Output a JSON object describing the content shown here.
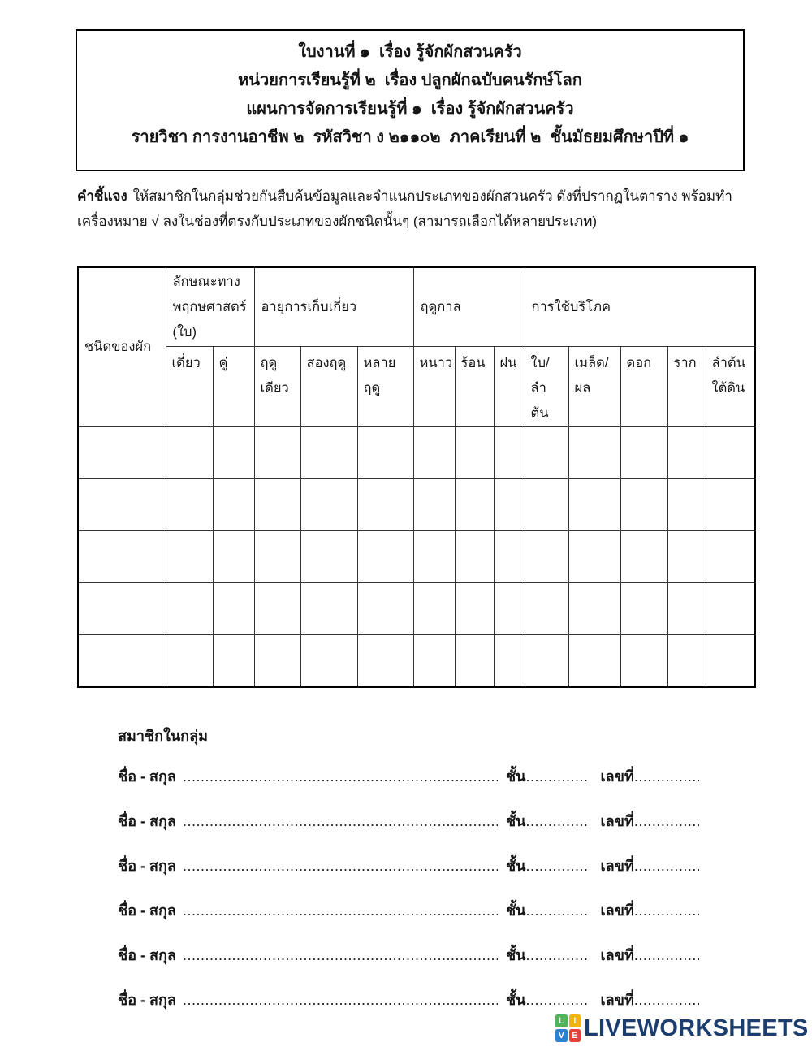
{
  "page": {
    "background": "#ffffff"
  },
  "header_box": {
    "lines": [
      "ใบงานที่ ๑  เรื่อง รู้จักผักสวนครัว",
      "หน่วยการเรียนรู้ที่ ๒  เรื่อง ปลูกผักฉบับคนรักษ์โลก",
      "แผนการจัดการเรียนรู้ที่ ๑  เรื่อง รู้จักผักสวนครัว",
      "รายวิชา การงานอาชีพ ๒  รหัสวิชา ง ๒๑๑๐๒  ภาคเรียนที่ ๒  ชั้นมัธยมศึกษาปีที่ ๑"
    ]
  },
  "instructions": {
    "label": "คำชี้แจง",
    "text": "ให้สมาชิกในกลุ่มช่วยกันสืบค้นข้อมูลและจำแนกประเภทของผักสวนครัว ดังที่ปรากฏในตาราง พร้อมทำ\nเครื่องหมาย √ ลงในช่องที่ตรงกับประเภทของผักชนิดนั้นๆ (สามารถเลือกได้หลายประเภท)"
  },
  "table": {
    "row_header": "ชนิดของผัก",
    "groups": [
      {
        "label": "ลักษณะทาง\nพฤกษศาสตร์\n(ใบ)",
        "subs": [
          "เดี่ยว",
          "คู่"
        ]
      },
      {
        "label": "อายุการเก็บเกี่ยว",
        "subs": [
          "ฤดู\nเดียว",
          "สองฤดู",
          "หลาย\nฤดู"
        ]
      },
      {
        "label": "ฤดูกาล",
        "subs": [
          "หนาว",
          "ร้อน",
          "ฝน"
        ]
      },
      {
        "label": "การใช้บริโภค",
        "subs": [
          "ใบ/\nลำ\nต้น",
          "เมล็ด/\nผล",
          "ดอก",
          "ราก",
          "ลำต้น\nใต้ดิน"
        ]
      }
    ],
    "empty_row_count": 5,
    "column_count": 14
  },
  "members": {
    "title": "สมาชิกในกลุ่ม",
    "name_label": "ชื่อ - สกุล",
    "class_label": "ชั้น",
    "number_label": "เลขที่",
    "dots_long": "..........................................................................................................................",
    "dots_short": "....................................",
    "line_count": 6
  },
  "footer": {
    "brand": "LIVEWORKSHEETS",
    "brand_color": "#1b3e6f",
    "icon": {
      "letters": [
        "L",
        "I",
        "V",
        "E"
      ],
      "colors": [
        "#53b257",
        "#f0b310",
        "#2f80d0",
        "#e8413c"
      ]
    }
  }
}
